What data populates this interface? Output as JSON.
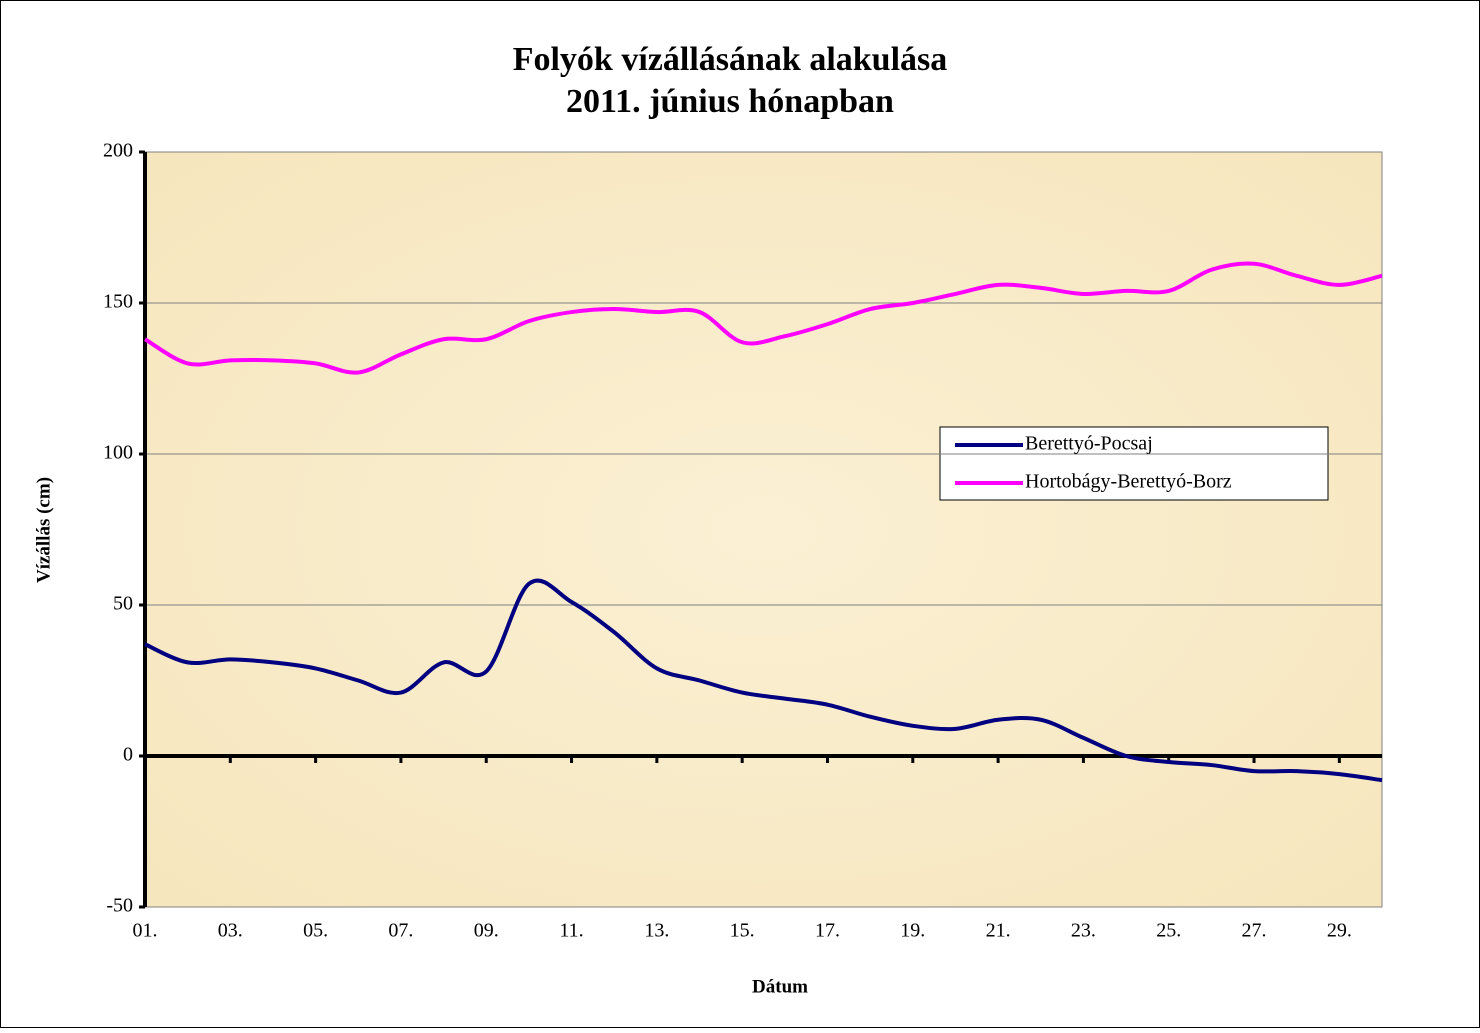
{
  "chart_data": {
    "type": "line",
    "title": [
      "Folyók vízállásának alakulása",
      "2011. június hónapban"
    ],
    "x_label": "Dátum",
    "y_label": "Vízállás (cm)",
    "categories": [
      "01.",
      null,
      "03.",
      null,
      "05.",
      null,
      "07.",
      null,
      "09.",
      null,
      "11.",
      null,
      "13.",
      null,
      "15.",
      null,
      "17.",
      null,
      "19.",
      null,
      "21.",
      null,
      "23.",
      null,
      "25.",
      null,
      "27.",
      null,
      "29.",
      null
    ],
    "series": [
      {
        "name": "Berettyó-Pocsaj",
        "color": "#000080",
        "values": [
          37,
          31,
          32,
          31,
          29,
          25,
          21,
          31,
          28,
          57,
          51,
          41,
          29,
          25,
          21,
          19,
          17,
          13,
          10,
          9,
          12,
          12,
          6,
          0,
          -2,
          -3,
          -5,
          -5,
          -6,
          -8
        ]
      },
      {
        "name": "Hortobágy-Berettyó-Borz",
        "color": "#ff00ff",
        "values": [
          138,
          130,
          131,
          131,
          130,
          127,
          133,
          138,
          138,
          144,
          147,
          148,
          147,
          147,
          137,
          139,
          143,
          148,
          150,
          153,
          156,
          155,
          153,
          154,
          154,
          161,
          163,
          159,
          156,
          159
        ]
      }
    ],
    "ylim": [
      -50,
      200
    ],
    "yticks": [
      -50,
      0,
      50,
      100,
      150,
      200
    ],
    "grid": true
  }
}
